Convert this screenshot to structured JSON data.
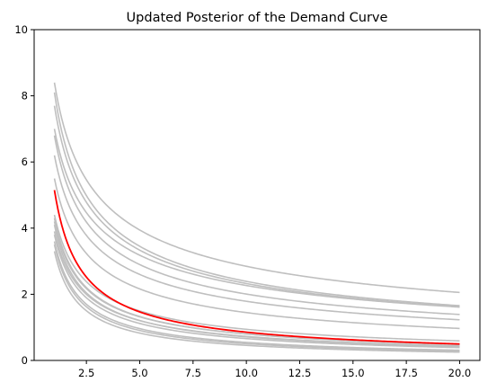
{
  "chart_data": {
    "type": "line",
    "title": "Updated Posterior of the Demand Curve",
    "xlabel": "",
    "ylabel": "",
    "xlim": [
      0.05,
      20.95
    ],
    "ylim": [
      0,
      10
    ],
    "x_range": [
      1,
      20
    ],
    "x_ticks": [
      2.5,
      5.0,
      7.5,
      10.0,
      12.5,
      15.0,
      17.5,
      20.0
    ],
    "x_tick_labels": [
      "2.5",
      "5.0",
      "7.5",
      "10.0",
      "12.5",
      "15.0",
      "17.5",
      "20.0"
    ],
    "y_ticks": [
      0,
      2,
      4,
      6,
      8,
      10
    ],
    "y_tick_labels": [
      "0",
      "2",
      "4",
      "6",
      "8",
      "10"
    ],
    "grid": false,
    "legend": "none",
    "model": "y = a * x^(-b)",
    "posterior_samples": {
      "color": "#bfbfbf",
      "curves": [
        {
          "a": 8.4,
          "b": 0.47
        },
        {
          "a": 8.1,
          "b": 0.53
        },
        {
          "a": 7.7,
          "b": 0.52
        },
        {
          "a": 7.0,
          "b": 0.49
        },
        {
          "a": 6.8,
          "b": 0.53
        },
        {
          "a": 6.2,
          "b": 0.54
        },
        {
          "a": 5.5,
          "b": 0.58
        },
        {
          "a": 4.4,
          "b": 0.67
        },
        {
          "a": 4.3,
          "b": 0.73
        },
        {
          "a": 4.2,
          "b": 0.72
        },
        {
          "a": 4.1,
          "b": 0.76
        },
        {
          "a": 3.9,
          "b": 0.73
        },
        {
          "a": 3.8,
          "b": 0.76
        },
        {
          "a": 3.6,
          "b": 0.82
        },
        {
          "a": 3.5,
          "b": 0.84
        },
        {
          "a": 3.3,
          "b": 0.86
        }
      ]
    },
    "posterior_mean": {
      "color": "#ff0000",
      "a": 5.15,
      "b": 0.78
    }
  }
}
